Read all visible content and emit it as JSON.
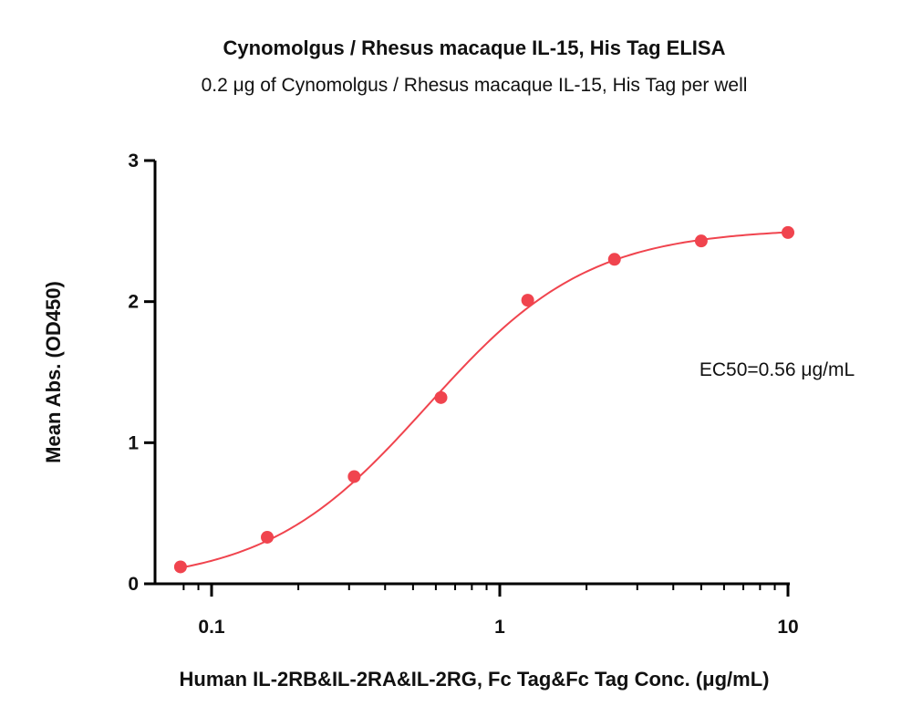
{
  "chart_data": {
    "type": "scatter",
    "title": "Cynomolgus / Rhesus macaque IL-15, His Tag ELISA",
    "subtitle": "0.2 μg of Cynomolgus / Rhesus macaque IL-15, His Tag per well",
    "xlabel": "Human IL-2RB&IL-2RA&IL-2RG, Fc Tag&Fc Tag Conc. (μg/mL)",
    "ylabel": "Mean Abs. (OD450)",
    "x_scale": "log",
    "xlim": [
      0.07,
      10
    ],
    "ylim": [
      0,
      3
    ],
    "x_ticks": [
      0.1,
      1,
      10
    ],
    "x_tick_labels": [
      "0.1",
      "1",
      "10"
    ],
    "y_ticks": [
      0,
      1,
      2,
      3
    ],
    "y_tick_labels": [
      "0",
      "1",
      "2",
      "3"
    ],
    "grid": false,
    "series": [
      {
        "x": [
          0.078,
          0.156,
          0.3125,
          0.625,
          1.25,
          2.5,
          5,
          10
        ],
        "y": [
          0.12,
          0.33,
          0.76,
          1.32,
          2.01,
          2.3,
          2.43,
          2.49
        ],
        "color": "#f0444e",
        "fit": "4PL",
        "fit_params": {
          "bottom": 0.0,
          "top": 2.52,
          "ec50": 0.56,
          "hill": 1.55
        }
      }
    ],
    "annotations": [
      {
        "text": "EC50=0.56 μg/mL"
      }
    ]
  }
}
